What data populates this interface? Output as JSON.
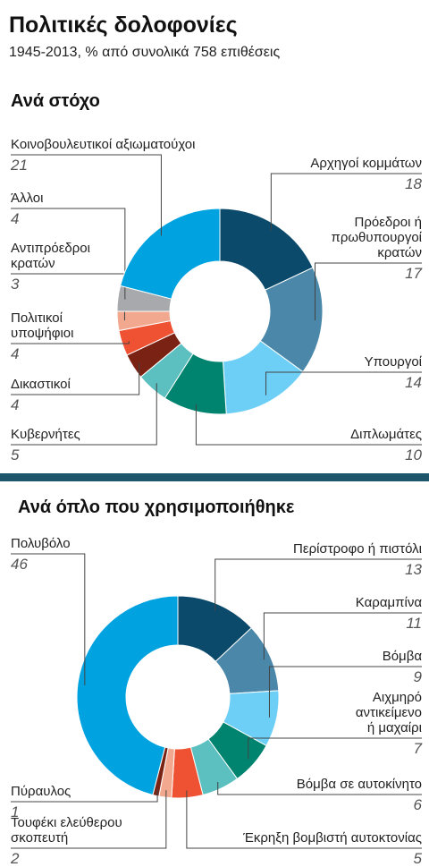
{
  "title": "Πολιτικές δολοφονίες",
  "subtitle": "1945-2013, % από συνολικά 758 επιθέσεις",
  "chart_data": [
    {
      "type": "donut",
      "title": "Ανά στόχο",
      "categories": [
        "Αρχηγοί κομμάτων",
        "Πρόεδροι ή\nπρωθυπουργοί\nκρατών",
        "Υπουργοί",
        "Διπλωμάτες",
        "Κυβερνήτες",
        "Δικαστικοί",
        "Πολιτικοί\nυποψήφιοι",
        "Αντιπρόεδροι\nκρατών",
        "Άλλοι",
        "Κοινοβουλευτικοί αξιωματούχοι"
      ],
      "values": [
        18,
        17,
        14,
        10,
        5,
        4,
        4,
        3,
        4,
        21
      ],
      "colors": [
        "#0b4a6a",
        "#4a87a9",
        "#6dcff6",
        "#00836f",
        "#5cbfc0",
        "#7a2314",
        "#ef5233",
        "#f2a88e",
        "#a7a9ac",
        "#00a2df"
      ]
    },
    {
      "type": "donut",
      "title": "Ανά όπλο που χρησιμοποιήθηκε",
      "categories": [
        "Περίστροφο ή πιστόλι",
        "Καραμπίνα",
        "Βόμβα",
        "Αιχμηρό\nαντικείμενο\nή μαχαίρι",
        "Βόμβα σε αυτοκίνητο",
        "Έκρηξη βομβιστή αυτοκτονίας",
        "Τουφέκι ελεύθερου\nσκοπευτή",
        "Πύραυλος",
        "Πολυβόλο"
      ],
      "values": [
        13,
        11,
        9,
        7,
        6,
        5,
        2,
        1,
        46
      ],
      "colors": [
        "#0b4a6a",
        "#4a87a9",
        "#6dcff6",
        "#00836f",
        "#5cbfc0",
        "#ef5233",
        "#f2a88e",
        "#7a2314",
        "#00a2df"
      ]
    }
  ]
}
